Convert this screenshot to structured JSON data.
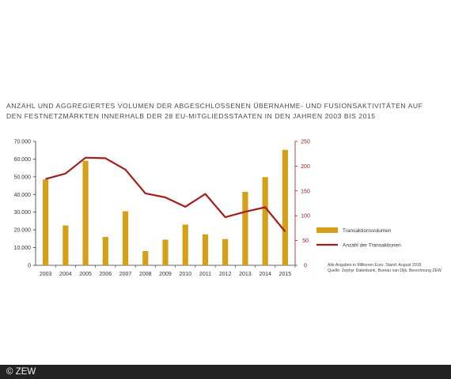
{
  "title_lines": [
    "ANZAHL UND AGGREGIERTES VOLUMEN DER ABGESCHLOSSENEN ÜBERNAHME- UND FUSIONSAKTIVITÄTEN AUF",
    "DEN FESTNETZMÄRKTEN INNERHALB DER 28 EU-MITGLIEDSSTAATEN IN DEN JAHREN 2003 BIS 2015"
  ],
  "notes": [
    "Alle Angaben in Millionen Euro. Stand: August 2015",
    "Quelle: Zephyr Datenbank, Bureau van Dijk, Berechnung ZEW"
  ],
  "footer": "© ZEW",
  "colors": {
    "bars": "#d4a017",
    "line": "#a31d1d",
    "right_axis": "#a31d1d",
    "left_axis": "#333333"
  },
  "chart_data": {
    "type": "bar",
    "categories": [
      "2003",
      "2004",
      "2005",
      "2006",
      "2007",
      "2008",
      "2009",
      "2010",
      "2011",
      "2012",
      "2013",
      "2014",
      "2015"
    ],
    "series": [
      {
        "name": "Transaktionsvolumen",
        "type": "bar",
        "axis": "left",
        "values": [
          48500,
          22500,
          59000,
          16000,
          30500,
          8000,
          14500,
          23000,
          17500,
          14800,
          41500,
          49800,
          65200
        ]
      },
      {
        "name": "Anzahl der Transaktionen",
        "type": "line",
        "axis": "right",
        "values": [
          174,
          185,
          217,
          216,
          193,
          145,
          137,
          118,
          144,
          97,
          108,
          117,
          68
        ]
      }
    ],
    "y_left": {
      "ylim": [
        0,
        70000
      ],
      "ticks": [
        "0",
        "10.000",
        "20.000",
        "30.000",
        "40.000",
        "50.000",
        "60.000",
        "70.000"
      ]
    },
    "y_right": {
      "ylim": [
        0,
        250
      ],
      "ticks": [
        "0",
        "50",
        "100",
        "150",
        "200",
        "250"
      ]
    },
    "grid": false,
    "legend_position": "right"
  }
}
